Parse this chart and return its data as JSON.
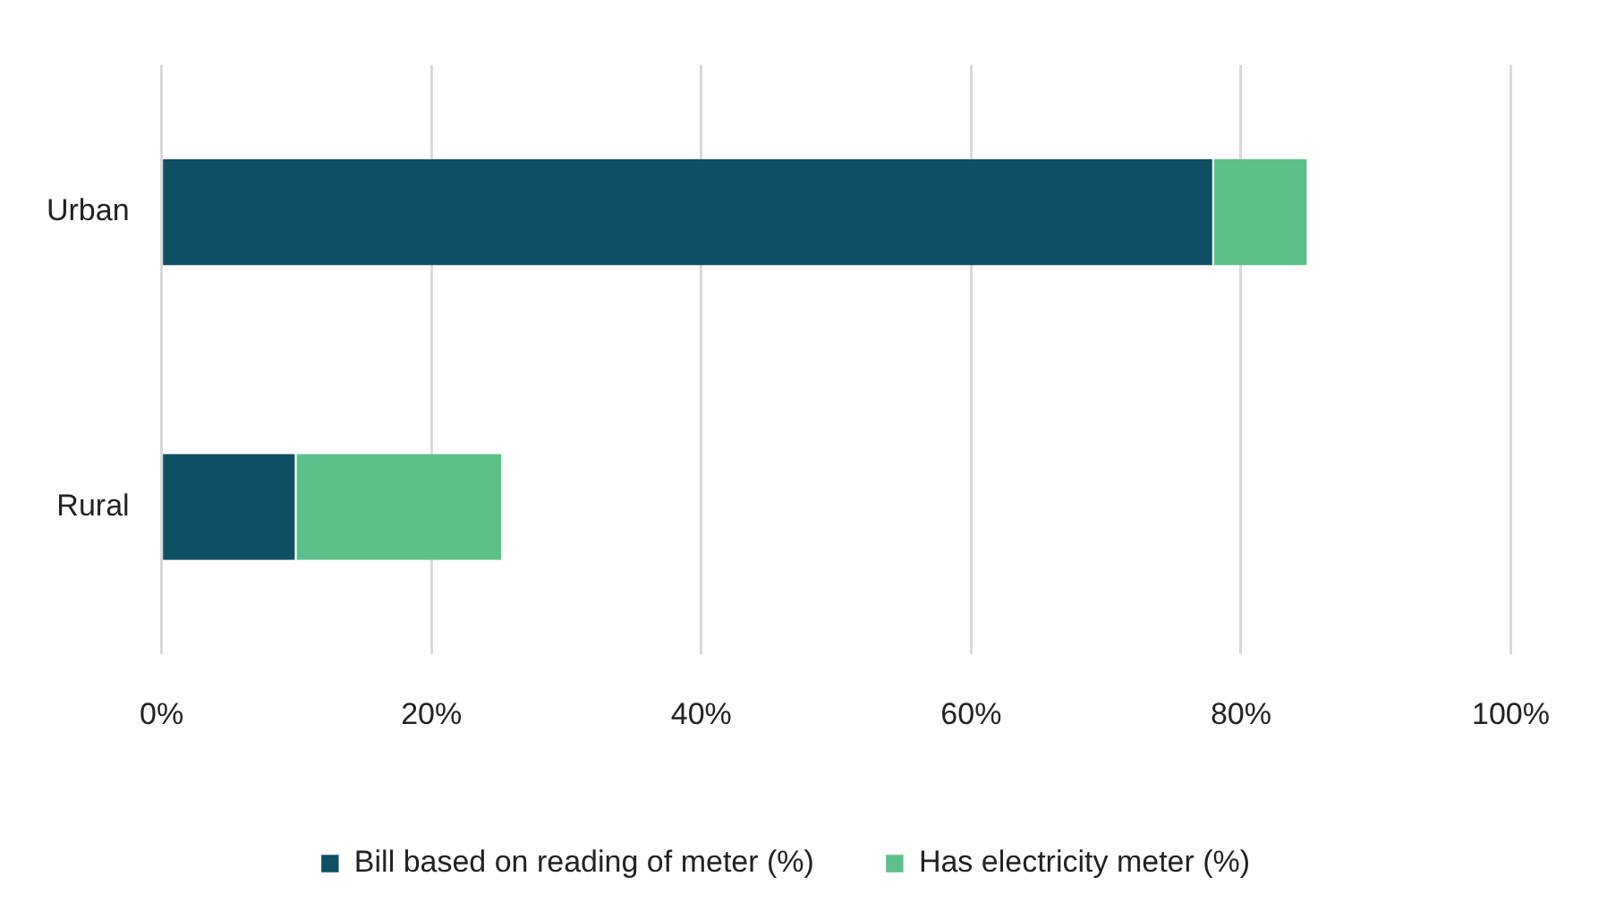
{
  "chart_data": {
    "type": "bar",
    "orientation": "horizontal",
    "stacked": true,
    "categories": [
      "Urban",
      "Rural"
    ],
    "series": [
      {
        "name": "Bill based on reading of meter (%)",
        "color": "#0e4f61",
        "values": [
          78,
          10
        ]
      },
      {
        "name": "Has electricity meter (%)",
        "color": "#5dbf8a",
        "values": [
          7,
          15.3
        ]
      }
    ],
    "xlim": [
      0,
      100
    ],
    "xticks": [
      {
        "value": 0,
        "label": "0%"
      },
      {
        "value": 20,
        "label": "20%"
      },
      {
        "value": 40,
        "label": "40%"
      },
      {
        "value": 60,
        "label": "60%"
      },
      {
        "value": 80,
        "label": "80%"
      },
      {
        "value": 100,
        "label": "100%"
      }
    ],
    "grid": "x",
    "legend": "bottom"
  }
}
